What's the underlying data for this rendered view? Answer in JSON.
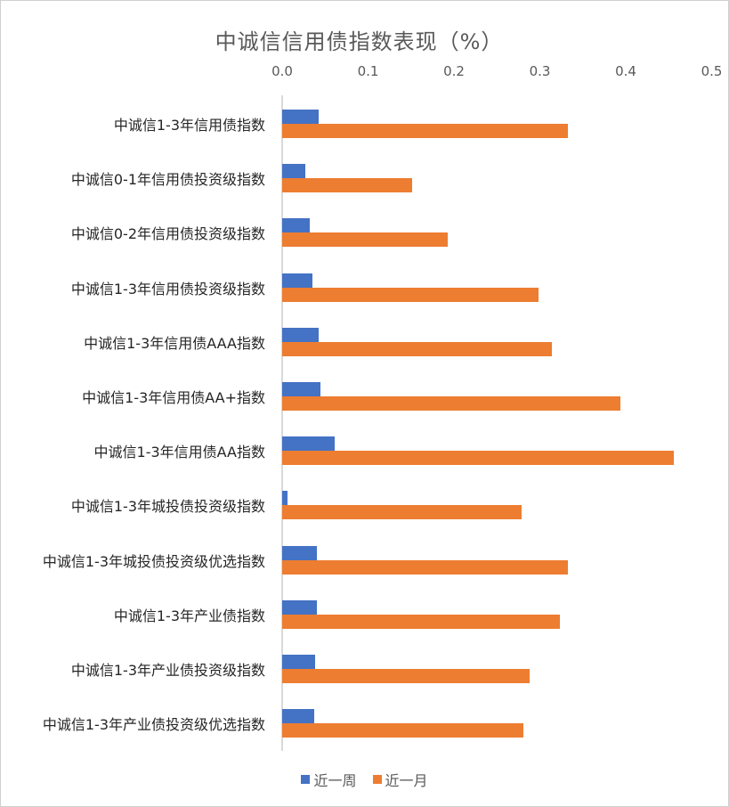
{
  "chart_data": {
    "type": "bar",
    "orientation": "horizontal",
    "title": "中诚信信用债指数表现（%）",
    "xlabel": "",
    "ylabel": "",
    "xlim": [
      0,
      0.5
    ],
    "x_ticks": [
      "0.0",
      "0.1",
      "0.2",
      "0.3",
      "0.4",
      "0.5"
    ],
    "x_axis_position": "top",
    "grid": false,
    "legend_position": "bottom",
    "categories": [
      "中诚信1-3年信用债指数",
      "中诚信0-1年信用债投资级指数",
      "中诚信0-2年信用债投资级指数",
      "中诚信1-3年信用债投资级指数",
      "中诚信1-3年信用债AAA指数",
      "中诚信1-3年信用债AA+指数",
      "中诚信1-3年信用债AA指数",
      "中诚信1-3年城投债投资级指数",
      "中诚信1-3年城投债投资级优选指数",
      "中诚信1-3年产业债指数",
      "中诚信1-3年产业债投资级指数",
      "中诚信1-3年产业债投资级优选指数"
    ],
    "series": [
      {
        "name": "近一周",
        "color": "#4472c4",
        "values": [
          0.042,
          0.027,
          0.032,
          0.035,
          0.042,
          0.045,
          0.061,
          0.006,
          0.04,
          0.04,
          0.038,
          0.037
        ]
      },
      {
        "name": "近一月",
        "color": "#ed7d31",
        "values": [
          0.333,
          0.151,
          0.193,
          0.298,
          0.314,
          0.394,
          0.456,
          0.279,
          0.333,
          0.323,
          0.288,
          0.281
        ]
      }
    ]
  }
}
